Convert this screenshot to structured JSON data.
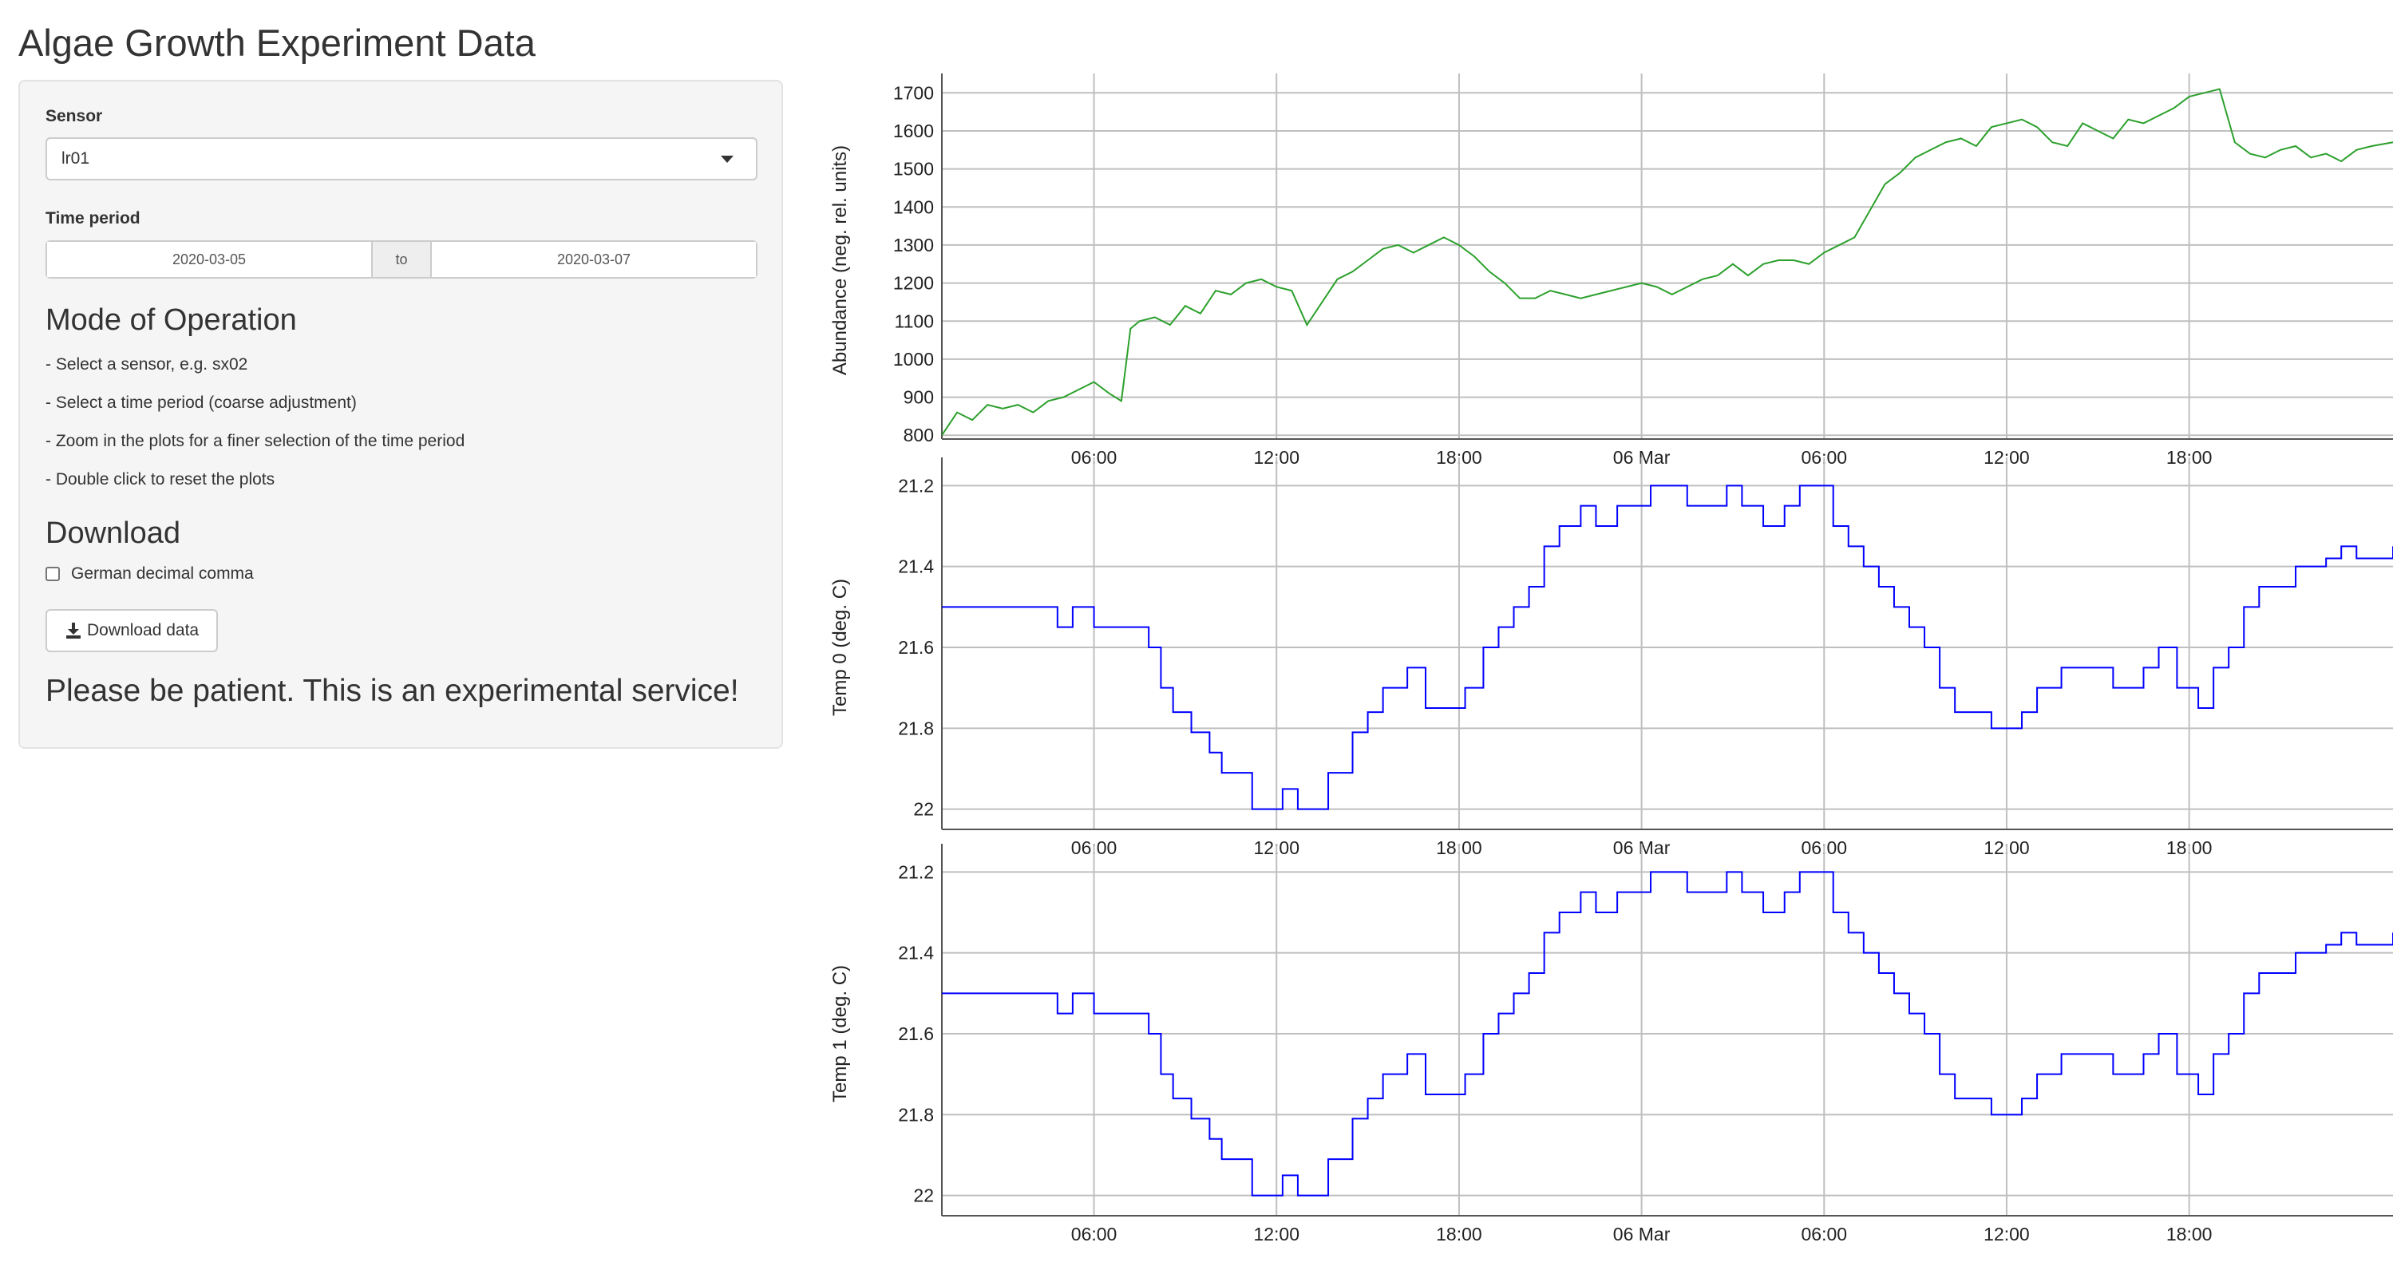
{
  "page_title": "Algae Growth Experiment Data",
  "sidebar": {
    "sensor_label": "Sensor",
    "sensor_value": "lr01",
    "time_period_label": "Time period",
    "date_start": "2020-03-05",
    "date_sep": "to",
    "date_end": "2020-03-07",
    "mode_heading": "Mode of Operation",
    "instructions": [
      "- Select a sensor, e.g. sx02",
      "- Select a time period (coarse adjustment)",
      "- Zoom in the plots for a finer selection of the time period",
      "- Double click to reset the plots"
    ],
    "download_heading": "Download",
    "checkbox_label": "German decimal comma",
    "download_button": "Download data",
    "patience_text": "Please be patient. This is an experimental service!"
  },
  "colors": {
    "abundance_line": "#2ca02c",
    "temp_line": "#0000ff",
    "grid": "#bfbfbf",
    "panel_bg": "#f5f5f5"
  },
  "chart_data": [
    {
      "type": "line",
      "ylabel": "Abundance (neg. rel. units)",
      "y_reversed": true,
      "ylim": [
        1730,
        790
      ],
      "yticks": [
        800,
        900,
        1000,
        1100,
        1200,
        1300,
        1400,
        1500,
        1600,
        1700
      ],
      "x_range_hours": [
        1.0,
        48.7
      ],
      "xticks": [
        {
          "h": 6,
          "label": "06:00"
        },
        {
          "h": 12,
          "label": "12:00"
        },
        {
          "h": 18,
          "label": "18:00"
        },
        {
          "h": 24,
          "label": "06 Mar"
        },
        {
          "h": 30,
          "label": "06:00"
        },
        {
          "h": 36,
          "label": "12:00"
        },
        {
          "h": 42,
          "label": "18:00"
        }
      ],
      "series": [
        {
          "x": [
            1.0,
            1.5,
            2.0,
            2.5,
            3.0,
            3.5,
            4.0,
            4.5,
            5.0,
            5.5,
            6.0,
            6.5,
            6.9,
            7.2,
            7.5,
            8.0,
            8.5,
            9.0,
            9.5,
            10.0,
            10.5,
            11.0,
            11.5,
            12.0,
            12.5,
            13.0,
            13.5,
            14.0,
            14.5,
            15.0,
            15.5,
            16.0,
            16.5,
            17.0,
            17.5,
            18.0,
            18.5,
            19.0,
            19.5,
            20.0,
            20.5,
            21.0,
            21.5,
            22.0,
            22.5,
            23.0,
            23.5,
            24.0,
            24.5,
            25.0,
            25.5,
            26.0,
            26.5,
            27.0,
            27.5,
            28.0,
            28.5,
            29.0,
            29.5,
            30.0,
            30.5,
            31.0,
            31.5,
            32.0,
            32.5,
            33.0,
            33.5,
            34.0,
            34.5,
            35.0,
            35.5,
            36.0,
            36.5,
            37.0,
            37.5,
            38.0,
            38.5,
            39.0,
            39.5,
            40.0,
            40.5,
            41.0,
            41.5,
            42.0,
            42.5,
            43.0,
            43.5,
            44.0,
            44.5,
            45.0,
            45.5,
            46.0,
            46.5,
            47.0,
            47.5,
            48.0,
            48.7
          ],
          "y": [
            800,
            860,
            840,
            880,
            870,
            880,
            860,
            890,
            900,
            920,
            940,
            910,
            890,
            1080,
            1100,
            1110,
            1090,
            1140,
            1120,
            1180,
            1170,
            1200,
            1210,
            1190,
            1180,
            1090,
            1150,
            1210,
            1230,
            1260,
            1290,
            1300,
            1280,
            1300,
            1320,
            1300,
            1270,
            1230,
            1200,
            1160,
            1160,
            1180,
            1170,
            1160,
            1170,
            1180,
            1190,
            1200,
            1190,
            1170,
            1190,
            1210,
            1220,
            1250,
            1220,
            1250,
            1260,
            1260,
            1250,
            1280,
            1300,
            1320,
            1390,
            1460,
            1490,
            1530,
            1550,
            1570,
            1580,
            1560,
            1610,
            1620,
            1630,
            1610,
            1570,
            1560,
            1620,
            1600,
            1580,
            1630,
            1620,
            1640,
            1660,
            1690,
            1700,
            1710,
            1570,
            1540,
            1530,
            1550,
            1560,
            1530,
            1540,
            1520,
            1550,
            1560,
            1570
          ]
        }
      ]
    },
    {
      "type": "line",
      "ylabel": "Temp 0 (deg. C)",
      "ylim": [
        21.15,
        22.05
      ],
      "yticks": [
        21.2,
        21.4,
        21.6,
        21.8,
        22
      ],
      "x_range_hours": [
        1.0,
        48.7
      ],
      "xticks": [
        {
          "h": 6,
          "label": "06:00"
        },
        {
          "h": 12,
          "label": "12:00"
        },
        {
          "h": 18,
          "label": "18:00"
        },
        {
          "h": 24,
          "label": "06 Mar"
        },
        {
          "h": 30,
          "label": "06:00"
        },
        {
          "h": 36,
          "label": "12:00"
        },
        {
          "h": 42,
          "label": "18:00"
        }
      ],
      "series": [
        {
          "x": [
            1.0,
            4.2,
            4.8,
            5.3,
            6.0,
            6.5,
            7.2,
            7.8,
            8.2,
            8.6,
            9.2,
            9.8,
            10.2,
            11.2,
            12.2,
            12.7,
            13.7,
            14.5,
            15.0,
            15.5,
            16.3,
            16.9,
            17.3,
            18.2,
            18.8,
            19.3,
            19.8,
            20.3,
            20.8,
            21.3,
            22.0,
            22.5,
            23.2,
            24.3,
            24.8,
            25.5,
            26.2,
            26.8,
            27.3,
            28.0,
            28.7,
            29.2,
            30.3,
            30.8,
            31.3,
            31.8,
            32.3,
            32.8,
            33.3,
            33.8,
            34.3,
            35.5,
            36.5,
            37.0,
            37.8,
            39.5,
            40.5,
            41.0,
            41.6,
            42.3,
            42.8,
            43.3,
            43.8,
            44.3,
            45.5,
            46.5,
            47.0,
            47.5,
            48.7
          ],
          "y": [
            21.5,
            21.5,
            21.55,
            21.5,
            21.55,
            21.55,
            21.55,
            21.6,
            21.7,
            21.76,
            21.81,
            21.86,
            21.91,
            22.0,
            21.95,
            22.0,
            21.91,
            21.81,
            21.76,
            21.7,
            21.65,
            21.75,
            21.75,
            21.7,
            21.6,
            21.55,
            21.5,
            21.45,
            21.35,
            21.3,
            21.25,
            21.3,
            21.25,
            21.2,
            21.2,
            21.25,
            21.25,
            21.2,
            21.25,
            21.3,
            21.25,
            21.2,
            21.3,
            21.35,
            21.4,
            21.45,
            21.5,
            21.55,
            21.6,
            21.7,
            21.76,
            21.8,
            21.76,
            21.7,
            21.65,
            21.7,
            21.65,
            21.6,
            21.7,
            21.75,
            21.65,
            21.6,
            21.5,
            21.45,
            21.4,
            21.38,
            21.35,
            21.38,
            21.35
          ]
        }
      ]
    },
    {
      "type": "line",
      "ylabel": "Temp 1 (deg. C)",
      "ylim": [
        21.15,
        22.05
      ],
      "yticks": [
        21.2,
        21.4,
        21.6,
        21.8,
        22
      ],
      "x_range_hours": [
        1.0,
        48.7
      ],
      "xticks": [
        {
          "h": 6,
          "label": "06:00"
        },
        {
          "h": 12,
          "label": "12:00"
        },
        {
          "h": 18,
          "label": "18:00"
        },
        {
          "h": 24,
          "label": "06 Mar"
        },
        {
          "h": 30,
          "label": "06:00"
        },
        {
          "h": 36,
          "label": "12:00"
        },
        {
          "h": 42,
          "label": "18:00"
        }
      ],
      "series": [
        {
          "x": [
            1.0,
            4.2,
            4.8,
            5.3,
            6.0,
            6.5,
            7.2,
            7.8,
            8.2,
            8.6,
            9.2,
            9.8,
            10.2,
            11.2,
            12.2,
            12.7,
            13.7,
            14.5,
            15.0,
            15.5,
            16.3,
            16.9,
            17.3,
            18.2,
            18.8,
            19.3,
            19.8,
            20.3,
            20.8,
            21.3,
            22.0,
            22.5,
            23.2,
            24.3,
            24.8,
            25.5,
            26.2,
            26.8,
            27.3,
            28.0,
            28.7,
            29.2,
            30.3,
            30.8,
            31.3,
            31.8,
            32.3,
            32.8,
            33.3,
            33.8,
            34.3,
            35.5,
            36.5,
            37.0,
            37.8,
            39.5,
            40.5,
            41.0,
            41.6,
            42.3,
            42.8,
            43.3,
            43.8,
            44.3,
            45.5,
            46.5,
            47.0,
            47.5,
            48.7
          ],
          "y": [
            21.5,
            21.5,
            21.55,
            21.5,
            21.55,
            21.55,
            21.55,
            21.6,
            21.7,
            21.76,
            21.81,
            21.86,
            21.91,
            22.0,
            21.95,
            22.0,
            21.91,
            21.81,
            21.76,
            21.7,
            21.65,
            21.75,
            21.75,
            21.7,
            21.6,
            21.55,
            21.5,
            21.45,
            21.35,
            21.3,
            21.25,
            21.3,
            21.25,
            21.2,
            21.2,
            21.25,
            21.25,
            21.2,
            21.25,
            21.3,
            21.25,
            21.2,
            21.3,
            21.35,
            21.4,
            21.45,
            21.5,
            21.55,
            21.6,
            21.7,
            21.76,
            21.8,
            21.76,
            21.7,
            21.65,
            21.7,
            21.65,
            21.6,
            21.7,
            21.75,
            21.65,
            21.6,
            21.5,
            21.45,
            21.4,
            21.38,
            21.35,
            21.38,
            21.35
          ]
        }
      ]
    }
  ]
}
